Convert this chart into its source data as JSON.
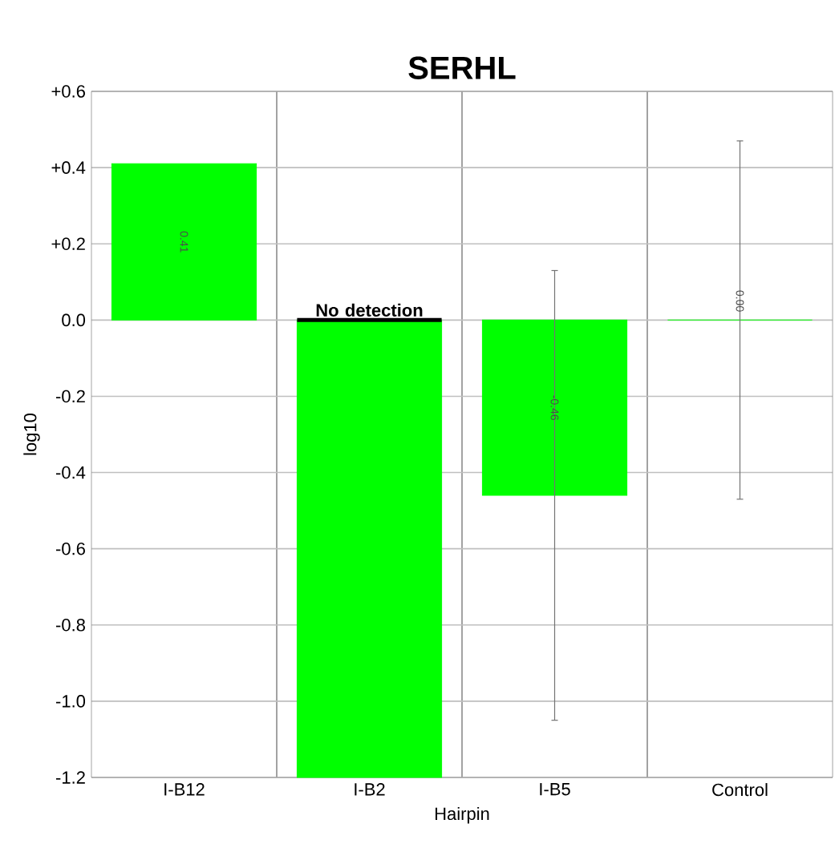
{
  "chart_data": {
    "type": "bar",
    "title": "SERHL",
    "xlabel": "Hairpin",
    "ylabel": "log10",
    "categories": [
      "I-B12",
      "I-B2",
      "I-B5",
      "Control"
    ],
    "values": [
      0.41,
      -1.2,
      -0.46,
      0.0
    ],
    "value_labels": [
      "0.41",
      null,
      "-0.46",
      "0.00"
    ],
    "errors": [
      null,
      null,
      [
        -1.05,
        0.13
      ],
      [
        -0.47,
        0.47
      ]
    ],
    "color": "#00ff00",
    "ylim": [
      -1.2,
      0.6
    ],
    "yticks": [
      {
        "value": 0.6,
        "label": "+0.6"
      },
      {
        "value": 0.4,
        "label": "+0.4"
      },
      {
        "value": 0.2,
        "label": "+0.2"
      },
      {
        "value": 0.0,
        "label": "0.0"
      },
      -0.2,
      -0.4,
      -0.6,
      -0.8,
      {
        "value": -1.0,
        "label": "-1.0"
      },
      -1.2
    ],
    "grid": true,
    "annotations": [
      {
        "text": "No detection",
        "x": "I-B2",
        "y": 0.0
      }
    ]
  }
}
